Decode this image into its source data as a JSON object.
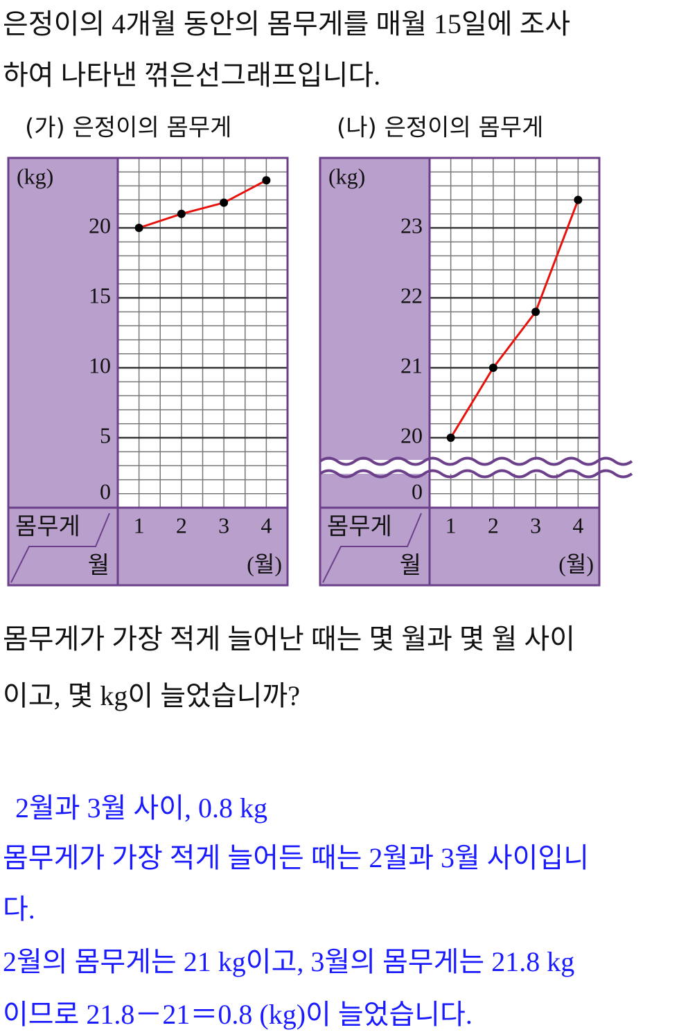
{
  "intro": [
    "은정이의 4개월 동안의 몸무게를 매월 15일에 조사",
    "하여 나타낸 꺾은선그래프입니다."
  ],
  "chart_data": [
    {
      "type": "line",
      "title": "(가) 은정이의 몸무게",
      "y_label": "(kg)",
      "x_label": "(월)",
      "corner_top": "몸무게",
      "corner_bottom": "월",
      "categories": [
        "1",
        "2",
        "3",
        "4"
      ],
      "series": [
        {
          "color": "#e8120c",
          "values": [
            20,
            21,
            21.8,
            23.4
          ]
        }
      ],
      "ylim": [
        0,
        25
      ],
      "yticks": [
        0,
        5,
        10,
        15,
        20
      ],
      "minor_grid_step": 1,
      "grid": true,
      "axis_break": false
    },
    {
      "type": "line",
      "title": "(나) 은정이의 몸무게",
      "y_label": "(kg)",
      "x_label": "(월)",
      "corner_top": "몸무게",
      "corner_bottom": "월",
      "categories": [
        "1",
        "2",
        "3",
        "4"
      ],
      "series": [
        {
          "color": "#e8120c",
          "values": [
            20,
            21,
            21.8,
            23.4
          ]
        }
      ],
      "ylim": [
        19,
        24
      ],
      "yticks": [
        0,
        20,
        21,
        22,
        23
      ],
      "minor_grid_step": 0.2,
      "grid": true,
      "axis_break": true
    }
  ],
  "question": [
    "몸무게가 가장 적게 늘어난 때는 몇 월과 몇 월 사이",
    "이고, 몇 kg이 늘었습니까?"
  ],
  "answer": "2월과 3월 사이, 0.8 kg",
  "explanation": [
    "몸무게가 가장 적게 늘어든 때는 2월과 3월 사이입니",
    "다.",
    "2월의 몸무게는 21 kg이고, 3월의 몸무게는 21.8 kg",
    "이므로 21.8－21＝0.8 (kg)이 늘었습니다."
  ]
}
